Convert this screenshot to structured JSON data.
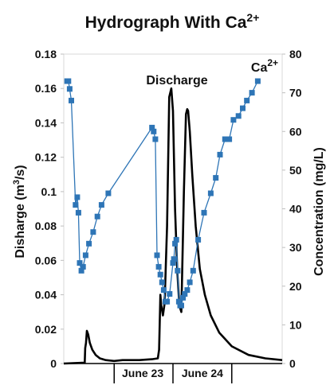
{
  "chart_data": {
    "type": "line",
    "title_main": "Hydrograph With Ca",
    "title_sup": "2+",
    "ylabel_left_main": "Disharge (m",
    "ylabel_left_sup": "3",
    "ylabel_left_end": "/s)",
    "ylabel_right": "Concentration (mg/L)",
    "ylim_left": [
      0,
      0.18
    ],
    "ylim_right": [
      0,
      80
    ],
    "left_ticks": [
      "0",
      "0.02",
      "0.04",
      "0.06",
      "0.08",
      "0.1",
      "0.12",
      "0.14",
      "0.16",
      "0.18"
    ],
    "right_ticks": [
      "0",
      "10",
      "20",
      "30",
      "40",
      "50",
      "60",
      "70",
      "80"
    ],
    "xlim": [
      0,
      26
    ],
    "x_date_labels": [
      {
        "label": "June 23",
        "x": 9.4
      },
      {
        "label": "June 24",
        "x": 16.5
      }
    ],
    "x_dividers": [
      6,
      13,
      20
    ],
    "colors": {
      "discharge": "#000000",
      "calcium": "#2E75B6"
    },
    "annotations": [
      {
        "text": "Discharge",
        "series": "discharge"
      },
      {
        "text_main": "Ca",
        "text_sup": "2+",
        "series": "calcium"
      }
    ],
    "series": [
      {
        "name": "Discharge",
        "axis": "left",
        "x": [
          0,
          2.5,
          2.55,
          2.65,
          2.75,
          2.9,
          3.1,
          3.4,
          3.8,
          4.3,
          5,
          6,
          7,
          8,
          9,
          10.5,
          11.2,
          11.35,
          11.5,
          11.6,
          11.8,
          12.0,
          12.3,
          12.55,
          12.8,
          13.0,
          13.25,
          13.5,
          13.75,
          14.0,
          14.3,
          14.55,
          14.7,
          14.8,
          15.0,
          15.3,
          15.7,
          16.2,
          16.8,
          17.5,
          18.5,
          20,
          22,
          24,
          26
        ],
        "y": [
          0,
          0.0005,
          0.009,
          0.012,
          0.019,
          0.017,
          0.012,
          0.008,
          0.005,
          0.003,
          0.002,
          0.0015,
          0.002,
          0.002,
          0.002,
          0.0025,
          0.003,
          0.008,
          0.04,
          0.034,
          0.028,
          0.035,
          0.08,
          0.155,
          0.16,
          0.147,
          0.09,
          0.055,
          0.034,
          0.03,
          0.1,
          0.145,
          0.148,
          0.147,
          0.135,
          0.11,
          0.08,
          0.055,
          0.04,
          0.028,
          0.018,
          0.01,
          0.005,
          0.003,
          0.002
        ]
      },
      {
        "name": "Ca",
        "axis": "right",
        "x": [
          0.4,
          0.55,
          0.7,
          0.9,
          1.4,
          1.6,
          1.75,
          1.9,
          2.1,
          2.3,
          2.6,
          3.0,
          3.5,
          4.0,
          4.5,
          5.3,
          10.5,
          10.7,
          10.9,
          11.1,
          11.3,
          11.5,
          11.7,
          11.9,
          12.1,
          12.3,
          12.6,
          13.0,
          13.1,
          13.25,
          13.4,
          13.55,
          13.7,
          13.85,
          14.0,
          14.2,
          14.4,
          14.7,
          15.0,
          15.4,
          16.0,
          16.7,
          17.5,
          18.1,
          18.6,
          19.2,
          19.7,
          20.2,
          20.8,
          21.3,
          21.8,
          22.4,
          23.1
        ],
        "y": [
          73,
          73,
          71,
          68,
          41,
          43,
          39,
          26,
          24,
          25,
          28,
          31,
          34,
          38,
          41,
          44,
          61,
          60,
          58,
          28,
          25,
          23,
          21,
          19,
          16,
          16,
          18,
          26,
          27,
          31,
          32,
          24,
          16,
          15,
          15,
          17,
          18,
          19,
          21,
          24,
          32,
          39,
          44,
          48,
          54,
          58,
          58,
          63,
          64,
          66,
          68,
          70,
          73
        ]
      }
    ]
  }
}
